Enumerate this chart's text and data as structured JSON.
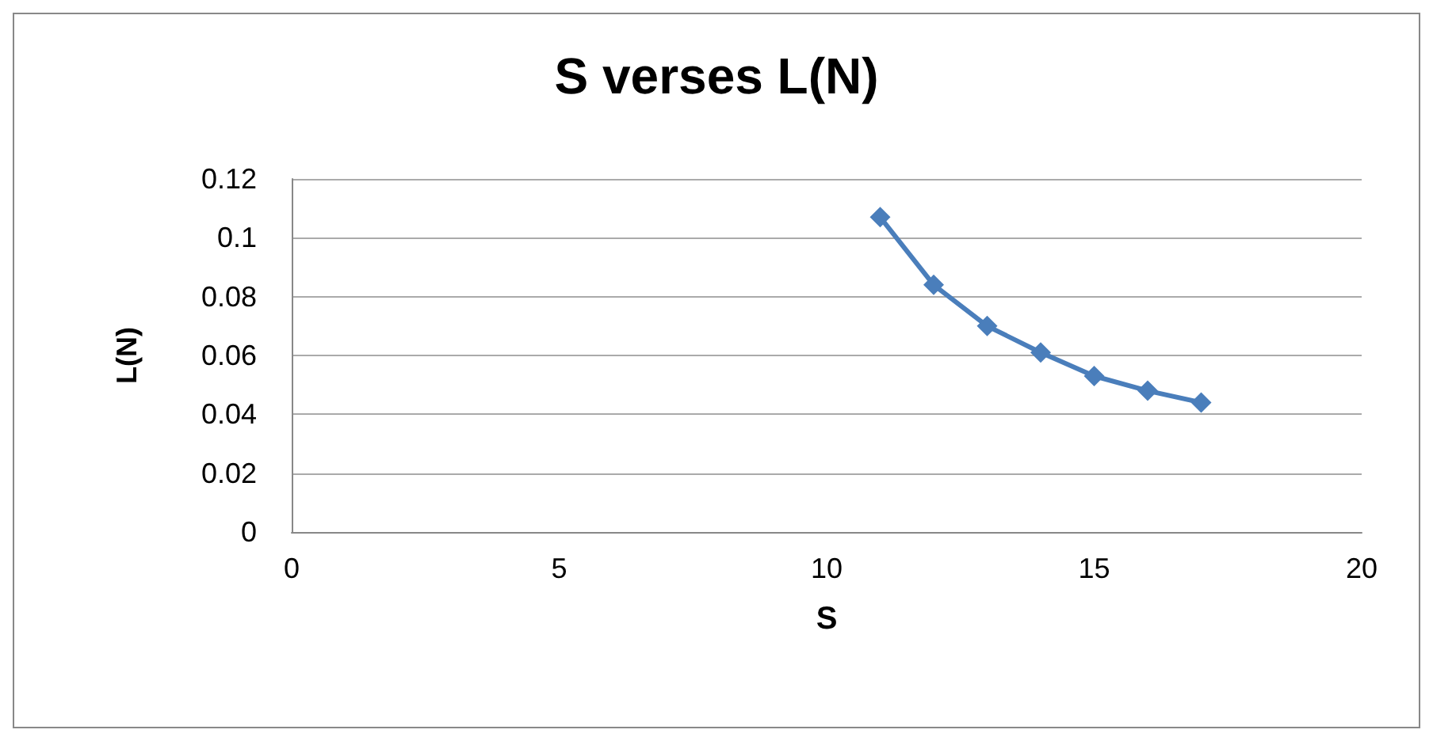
{
  "chart_data": {
    "type": "line",
    "title": "S verses L(N)",
    "xlabel": "S",
    "ylabel": "L(N)",
    "x": [
      11,
      12,
      13,
      14,
      15,
      16,
      17
    ],
    "series": [
      {
        "color": "#4a7ebb",
        "values": [
          0.107,
          0.084,
          0.07,
          0.061,
          0.053,
          0.048,
          0.044
        ]
      }
    ],
    "xlim": [
      0,
      20
    ],
    "xticks": [
      0,
      5,
      10,
      15,
      20
    ],
    "ylim": [
      0,
      0.12
    ],
    "yticks": [
      0,
      0.02,
      0.04,
      0.06,
      0.08,
      0.1,
      0.12
    ],
    "grid": "y",
    "marker": "diamond",
    "line_style": "solid"
  }
}
